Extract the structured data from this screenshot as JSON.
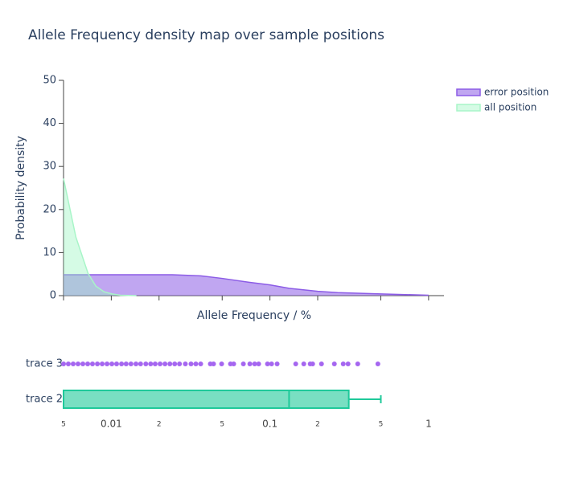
{
  "chart_data": [
    {
      "type": "area",
      "title": "Allele Frequency density map over sample positions",
      "x_label": "Allele Frequency / %",
      "y_label": "Probability density",
      "xlog": true,
      "xlim": [
        0.005,
        1.25
      ],
      "xticks": [
        0.005,
        0.01,
        0.02,
        0.05,
        0.1,
        0.2,
        0.5,
        1
      ],
      "ylim": [
        0,
        50
      ],
      "yticks": [
        0,
        10,
        20,
        30,
        40,
        50
      ],
      "legend": "top-right",
      "series": [
        {
          "name": "error position",
          "color": "#8c5ce6",
          "x": [
            0.005,
            0.00634,
            0.0114,
            0.0243,
            0.0366,
            0.05,
            0.0738,
            0.1,
            0.132,
            0.2,
            0.267,
            0.5,
            1
          ],
          "values": [
            4.85,
            4.85,
            4.85,
            4.85,
            4.6,
            4.0,
            3.1,
            2.5,
            1.7,
            1.0,
            0.7,
            0.4,
            0.1
          ]
        },
        {
          "name": "all position",
          "color": "#a8f5c8",
          "x": [
            0.005,
            0.00598,
            0.00713,
            0.008,
            0.009,
            0.0101,
            0.0114,
            0.0144
          ],
          "values": [
            27.2,
            13.6,
            5.2,
            2.2,
            0.9,
            0.4,
            0.1,
            0
          ]
        }
      ]
    },
    {
      "type": "box",
      "xlog": true,
      "xlim": [
        0.005,
        1.25
      ],
      "xticks": [
        {
          "value": 0.005,
          "label": "5"
        },
        0.01,
        {
          "value": 0.02,
          "label": "2"
        },
        {
          "value": 0.05,
          "label": "5"
        },
        0.1,
        {
          "value": 0.2,
          "label": "2"
        },
        {
          "value": 0.5,
          "label": "5"
        },
        1
      ],
      "series": [
        {
          "name": "trace 3",
          "kind": "strip",
          "color": "#a566f0",
          "values": [
            0.005,
            0.00536,
            0.00575,
            0.00617,
            0.00662,
            0.0071,
            0.00761,
            0.00817,
            0.00876,
            0.0094,
            0.01008,
            0.0108,
            0.0116,
            0.0124,
            0.0133,
            0.0143,
            0.0153,
            0.0165,
            0.0177,
            0.0189,
            0.0203,
            0.0218,
            0.0234,
            0.0251,
            0.0269,
            0.0293,
            0.0318,
            0.0341,
            0.0366,
            0.0421,
            0.0441,
            0.0496,
            0.0564,
            0.0591,
            0.068,
            0.0747,
            0.0801,
            0.0849,
            0.0965,
            0.1024,
            0.111,
            0.1454,
            0.1634,
            0.1794,
            0.1858,
            0.2113,
            0.2547,
            0.2897,
            0.3107,
            0.3576,
            0.479
          ]
        },
        {
          "name": "trace 2",
          "kind": "box",
          "color": "#1fc99a",
          "min": 0.005,
          "q1": 0.005,
          "median": 0.132,
          "q3": 0.314,
          "max": 0.5
        }
      ]
    }
  ]
}
